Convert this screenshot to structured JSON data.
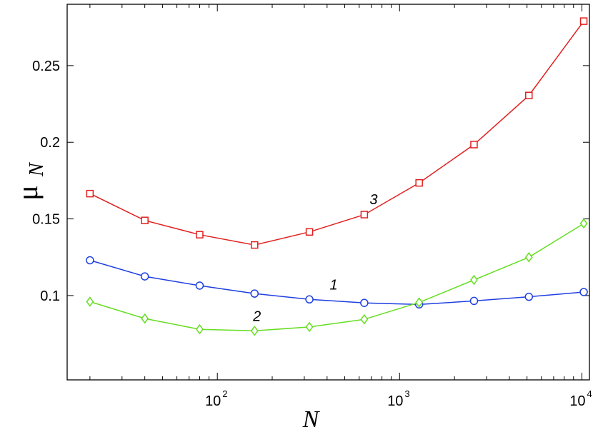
{
  "chart_data": {
    "type": "line",
    "xscale": "log",
    "xlim": [
      15,
      11000
    ],
    "ylim": [
      0.045,
      0.29
    ],
    "xlabel": "N",
    "ylabel_main": "μ",
    "ylabel_sub": "N",
    "x": [
      20,
      40,
      80,
      160,
      320,
      640,
      1280,
      2560,
      5120,
      10240
    ],
    "x_ticks": [
      {
        "value": 100,
        "base": "10",
        "exp": "2"
      },
      {
        "value": 1000,
        "base": "10",
        "exp": "3"
      },
      {
        "value": 10000,
        "base": "10",
        "exp": "4"
      }
    ],
    "y_ticks": [
      {
        "value": 0.1,
        "label": "0.1"
      },
      {
        "value": 0.15,
        "label": "0.15"
      },
      {
        "value": 0.2,
        "label": "0.2"
      },
      {
        "value": 0.25,
        "label": "0.25"
      }
    ],
    "series": [
      {
        "label": "1",
        "color": "#1f3fe0",
        "marker": "circle",
        "values": [
          0.123,
          0.1125,
          0.1065,
          0.1013,
          0.0975,
          0.0952,
          0.0942,
          0.0965,
          0.0992,
          0.1023
        ],
        "label_at": {
          "x": 435,
          "y": 0.104
        }
      },
      {
        "label": "2",
        "color": "#66dd22",
        "marker": "diamond",
        "values": [
          0.096,
          0.085,
          0.078,
          0.077,
          0.0795,
          0.0845,
          0.0955,
          0.1102,
          0.125,
          0.147
        ],
        "label_at": {
          "x": 165,
          "y": 0.0835
        }
      },
      {
        "label": "3",
        "color": "#e02020",
        "marker": "square",
        "values": [
          0.1665,
          0.149,
          0.1397,
          0.133,
          0.1415,
          0.1528,
          0.1735,
          0.1985,
          0.2305,
          0.279
        ],
        "label_at": {
          "x": 720,
          "y": 0.1595
        }
      }
    ]
  }
}
